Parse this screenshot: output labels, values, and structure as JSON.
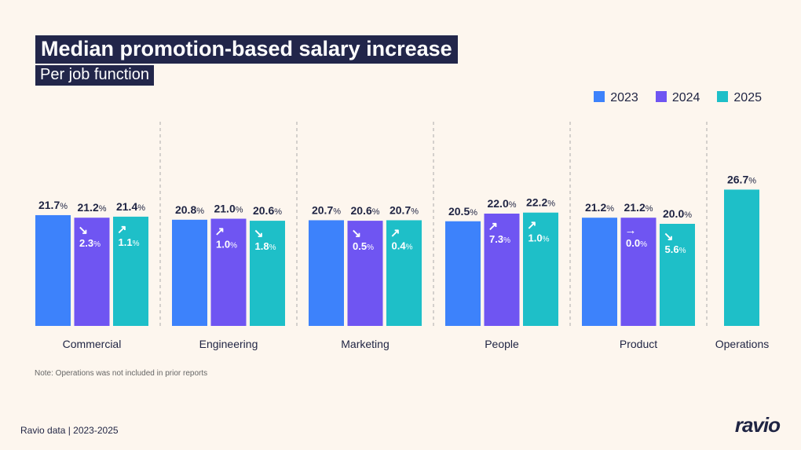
{
  "title": "Median promotion-based salary increase",
  "subtitle": "Per job function",
  "note": "Note: Operations was not included in prior reports",
  "footer": "Ravio data | 2023-2025",
  "logo": "ravio",
  "colors": {
    "2023": "#3d82fb",
    "2024": "#6f55f2",
    "2025": "#1ebfc8",
    "background": "#fdf6ee",
    "text": "#1f2443"
  },
  "chart_data": {
    "type": "bar",
    "title": "Median promotion-based salary increase",
    "subtitle": "Per job function",
    "unit": "%",
    "legend": [
      "2023",
      "2024",
      "2025"
    ],
    "legend_position": "top-right",
    "grid": false,
    "categories": [
      "Commercial",
      "Engineering",
      "Marketing",
      "People",
      "Product",
      "Operations"
    ],
    "series": [
      {
        "name": "2023",
        "values": [
          21.7,
          20.8,
          20.7,
          20.5,
          21.2,
          null
        ]
      },
      {
        "name": "2024",
        "values": [
          21.2,
          21.0,
          20.6,
          22.0,
          21.2,
          null
        ],
        "change": [
          {
            "dir": "down",
            "value": "2.3"
          },
          {
            "dir": "up",
            "value": "1.0"
          },
          {
            "dir": "down",
            "value": "0.5"
          },
          {
            "dir": "up",
            "value": "7.3"
          },
          {
            "dir": "flat",
            "value": "0.0"
          },
          null
        ]
      },
      {
        "name": "2025",
        "values": [
          21.4,
          20.6,
          20.7,
          22.2,
          20.0,
          26.7
        ],
        "change": [
          {
            "dir": "up",
            "value": "1.1"
          },
          {
            "dir": "down",
            "value": "1.8"
          },
          {
            "dir": "up",
            "value": "0.4"
          },
          {
            "dir": "up",
            "value": "1.0"
          },
          {
            "dir": "down",
            "value": "5.6"
          },
          null
        ]
      }
    ]
  }
}
